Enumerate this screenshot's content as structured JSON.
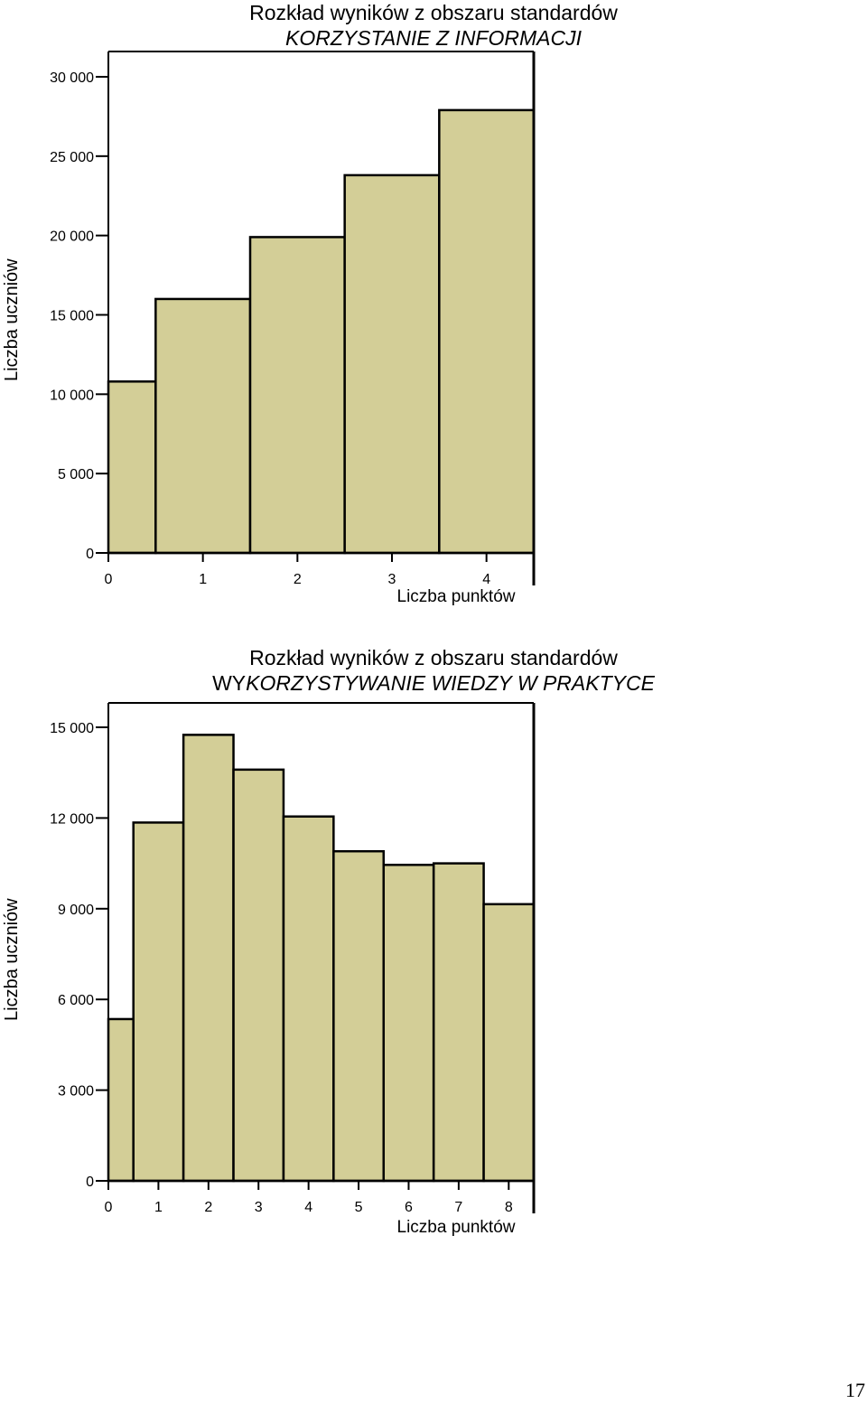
{
  "chart_data": [
    {
      "type": "bar",
      "title": "Rozkład wyników z obszaru standardów",
      "subtitle": "KORZYSTANIE Z INFORMACJI",
      "subtitle_prefix": "",
      "xlabel": "Liczba punktów",
      "ylabel": "Liczba uczniów",
      "categories": [
        "0",
        "1",
        "2",
        "3",
        "4"
      ],
      "values": [
        10800,
        16000,
        19900,
        23800,
        27900
      ],
      "ylim": [
        0,
        30000
      ],
      "yticks": [
        0,
        5000,
        10000,
        15000,
        20000,
        25000,
        30000
      ],
      "ytick_labels": [
        "0",
        "5 000",
        "10 000",
        "15 000",
        "20 000",
        "25 000",
        "30 000"
      ],
      "bar_color": "#d3ce97",
      "grid": false
    },
    {
      "type": "bar",
      "title": "Rozkład wyników z obszaru standardów",
      "subtitle": "KORZYSTYWANIE WIEDZY W PRAKTYCE",
      "subtitle_prefix": "WY",
      "xlabel": "Liczba punktów",
      "ylabel": "Liczba uczniów",
      "categories": [
        "0",
        "1",
        "2",
        "3",
        "4",
        "5",
        "6",
        "7",
        "8"
      ],
      "values": [
        5350,
        11850,
        14750,
        13600,
        12050,
        10900,
        10450,
        10500,
        9150
      ],
      "ylim": [
        0,
        15000
      ],
      "yticks": [
        0,
        3000,
        6000,
        9000,
        12000,
        15000
      ],
      "ytick_labels": [
        "0",
        "3 000",
        "6 000",
        "9 000",
        "12 000",
        "15 000"
      ],
      "bar_color": "#d3ce97",
      "grid": false
    }
  ],
  "page_number": "17"
}
